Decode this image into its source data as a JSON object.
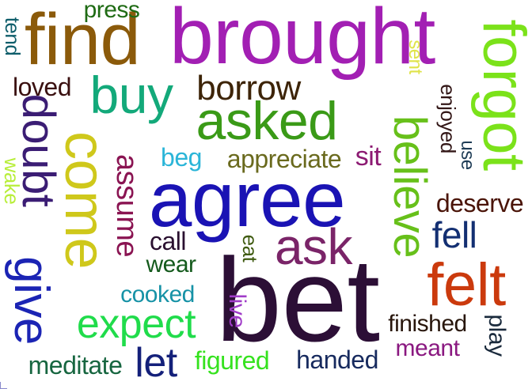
{
  "words": [
    {
      "text": "find",
      "color": "#8b5a0a"
    },
    {
      "text": "brought",
      "color": "#a21fb3"
    },
    {
      "text": "forgot",
      "color": "#7be21a"
    },
    {
      "text": "press",
      "color": "#1f6b14"
    },
    {
      "text": "tend",
      "color": "#0f5e6b"
    },
    {
      "text": "sent",
      "color": "#dfe34a"
    },
    {
      "text": "buy",
      "color": "#13a97a"
    },
    {
      "text": "borrow",
      "color": "#3d2408"
    },
    {
      "text": "loved",
      "color": "#3a1010"
    },
    {
      "text": "enjoyed",
      "color": "#321616"
    },
    {
      "text": "asked",
      "color": "#3a9a17"
    },
    {
      "text": "believe",
      "color": "#67c01a"
    },
    {
      "text": "doubt",
      "color": "#3b1d74"
    },
    {
      "text": "come",
      "color": "#cfc81b"
    },
    {
      "text": "assume",
      "color": "#8a1452"
    },
    {
      "text": "use",
      "color": "#1d3b55"
    },
    {
      "text": "beg",
      "color": "#2bb5d8"
    },
    {
      "text": "appreciate",
      "color": "#6a6a1e"
    },
    {
      "text": "sit",
      "color": "#8c1a72"
    },
    {
      "text": "wake",
      "color": "#b8ee3a"
    },
    {
      "text": "agree",
      "color": "#1a13b4"
    },
    {
      "text": "deserve",
      "color": "#4a1408"
    },
    {
      "text": "call",
      "color": "#2a1030"
    },
    {
      "text": "eat",
      "color": "#3f5b10"
    },
    {
      "text": "ask",
      "color": "#7a2468"
    },
    {
      "text": "fell",
      "color": "#132f72"
    },
    {
      "text": "give",
      "color": "#1b24b4"
    },
    {
      "text": "wear",
      "color": "#145a1c"
    },
    {
      "text": "felt",
      "color": "#cb3a0d"
    },
    {
      "text": "cooked",
      "color": "#1692a6"
    },
    {
      "text": "bet",
      "color": "#2c0f36"
    },
    {
      "text": "live",
      "color": "#a03cc8"
    },
    {
      "text": "expect",
      "color": "#20dc4b"
    },
    {
      "text": "finished",
      "color": "#28160c"
    },
    {
      "text": "play",
      "color": "#1a2a3c"
    },
    {
      "text": "let",
      "color": "#14207a"
    },
    {
      "text": "meant",
      "color": "#8a1880"
    },
    {
      "text": "meditate",
      "color": "#176640"
    },
    {
      "text": "figured",
      "color": "#35e21e"
    },
    {
      "text": "handed",
      "color": "#172a5e"
    }
  ]
}
